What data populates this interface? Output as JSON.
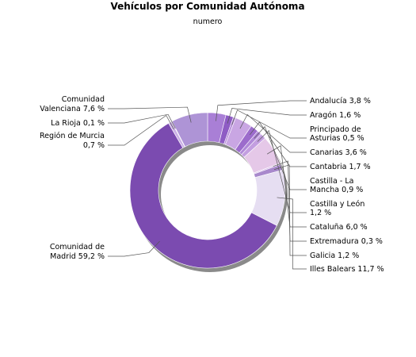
{
  "chart_data": {
    "type": "pie",
    "title": "Vehículos por Comunidad Autónoma",
    "subtitle": "numero",
    "start_angle_deg": 0,
    "slices": [
      {
        "label": "Andalucía 3,8 %",
        "value": 3.8,
        "color": "#a97fd6"
      },
      {
        "label": "Aragón 1,6 %",
        "value": 1.6,
        "color": "#8e5cc4"
      },
      {
        "label": "Principado de Asturias 0,5 %",
        "value": 0.5,
        "color": "#b78fd9"
      },
      {
        "label": "Canarias 3,6 %",
        "value": 3.6,
        "color": "#c9a6e3"
      },
      {
        "label": "Cantabria 1,7 %",
        "value": 1.7,
        "color": "#9c6ccc"
      },
      {
        "label": "Castilla - La Mancha 0,9 %",
        "value": 0.9,
        "color": "#b088d8"
      },
      {
        "label": "Castilla y León 1,2 %",
        "value": 1.2,
        "color": "#c39ee0"
      },
      {
        "label": "Cataluña 6,0 %",
        "value": 6.0,
        "color": "#e5c8e8"
      },
      {
        "label": "Extremadura 0,3 %",
        "value": 0.3,
        "color": "#d6b8ea"
      },
      {
        "label": "Galicia 1,2 %",
        "value": 1.2,
        "color": "#a888cc"
      },
      {
        "label": "Illes Balears 11,7 %",
        "value": 11.7,
        "color": "#e6def2"
      },
      {
        "label": "Comunidad de Madrid 59,2 %",
        "value": 59.2,
        "color": "#7b4bb0"
      },
      {
        "label": "Región de Murcia 0,7 %",
        "value": 0.7,
        "color": "#cbb0e6"
      },
      {
        "label": "La Rioja 0,1 %",
        "value": 0.1,
        "color": "#d9c3ee"
      },
      {
        "label": "Comunidad Valenciana 7,6 %",
        "value": 7.6,
        "color": "#ae94d6"
      }
    ]
  }
}
